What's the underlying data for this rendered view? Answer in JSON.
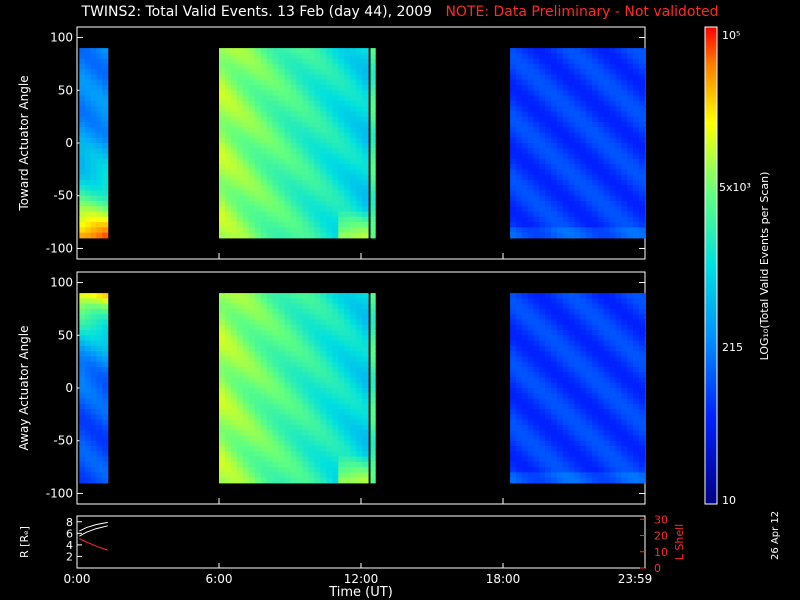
{
  "title": {
    "main": "TWINS2: Total Valid Events. 13 Feb (day  44), 2009",
    "note": "NOTE: Data Preliminary - Not validoted"
  },
  "date_stamp": "26 Apr 12",
  "colorbar": {
    "label": "LOG₁₀(Total Valid Events per Scan)",
    "ticks": [
      "10⁵",
      "5x10³",
      "215",
      "10"
    ]
  },
  "chart_data": [
    {
      "type": "heatmap",
      "panel": "toward",
      "ylabel": "Toward Actuator Angle",
      "ylim": [
        -110,
        110
      ],
      "yticks": [
        "100",
        "50",
        "0",
        "-50",
        "-100"
      ],
      "xlim": [
        0,
        24
      ],
      "xticks": [
        "0:00",
        "6:00",
        "12:00",
        "18:00",
        "23:59"
      ],
      "segments": [
        {
          "t0": 0.1,
          "t1": 1.3,
          "profile": "low-angle-peak"
        },
        {
          "t0": 6.0,
          "t1": 12.3,
          "profile": "bright-broad"
        },
        {
          "t0": 12.4,
          "t1": 12.6,
          "profile": "bright-narrow"
        },
        {
          "t0": 18.3,
          "t1": 23.99,
          "profile": "dim"
        }
      ],
      "angle_range": [
        -90,
        90
      ]
    },
    {
      "type": "heatmap",
      "panel": "away",
      "ylabel": "Away Actuator Angle",
      "ylim": [
        -110,
        110
      ],
      "yticks": [
        "100",
        "50",
        "0",
        "-50",
        "-100"
      ],
      "xlim": [
        0,
        24
      ],
      "xticks": [
        "0:00",
        "6:00",
        "12:00",
        "18:00",
        "23:59"
      ],
      "segments": [
        {
          "t0": 0.1,
          "t1": 1.3,
          "profile": "high-angle-peak"
        },
        {
          "t0": 6.0,
          "t1": 12.3,
          "profile": "bright-broad"
        },
        {
          "t0": 12.4,
          "t1": 12.6,
          "profile": "bright-narrow"
        },
        {
          "t0": 18.3,
          "t1": 23.99,
          "profile": "dim"
        }
      ],
      "angle_range": [
        -90,
        90
      ]
    },
    {
      "type": "line",
      "panel": "orbit",
      "ylabel": "R [Rₑ]",
      "ylabel_right": "L Shell",
      "yticks_left": [
        "8",
        "6",
        "4",
        "2"
      ],
      "yticks_right": [
        "30",
        "20",
        "10",
        "0"
      ],
      "xlabel": "Time (UT)",
      "xticks": [
        "0:00",
        "6:00",
        "12:00",
        "18:00",
        "23:59"
      ],
      "series": [
        {
          "color": "#ffffff",
          "x": [
            0.1,
            0.4,
            0.8,
            1.3
          ],
          "y": [
            6.4,
            7.0,
            7.5,
            7.9
          ]
        },
        {
          "color": "#ffffff",
          "x": [
            0.1,
            0.4,
            0.8,
            1.3
          ],
          "y": [
            5.5,
            6.2,
            6.8,
            7.3
          ]
        },
        {
          "color": "#ff2a2a",
          "x": [
            0.1,
            0.4,
            0.8,
            1.3
          ],
          "y": [
            18.0,
            16.0,
            13.5,
            11.0
          ]
        }
      ]
    }
  ]
}
